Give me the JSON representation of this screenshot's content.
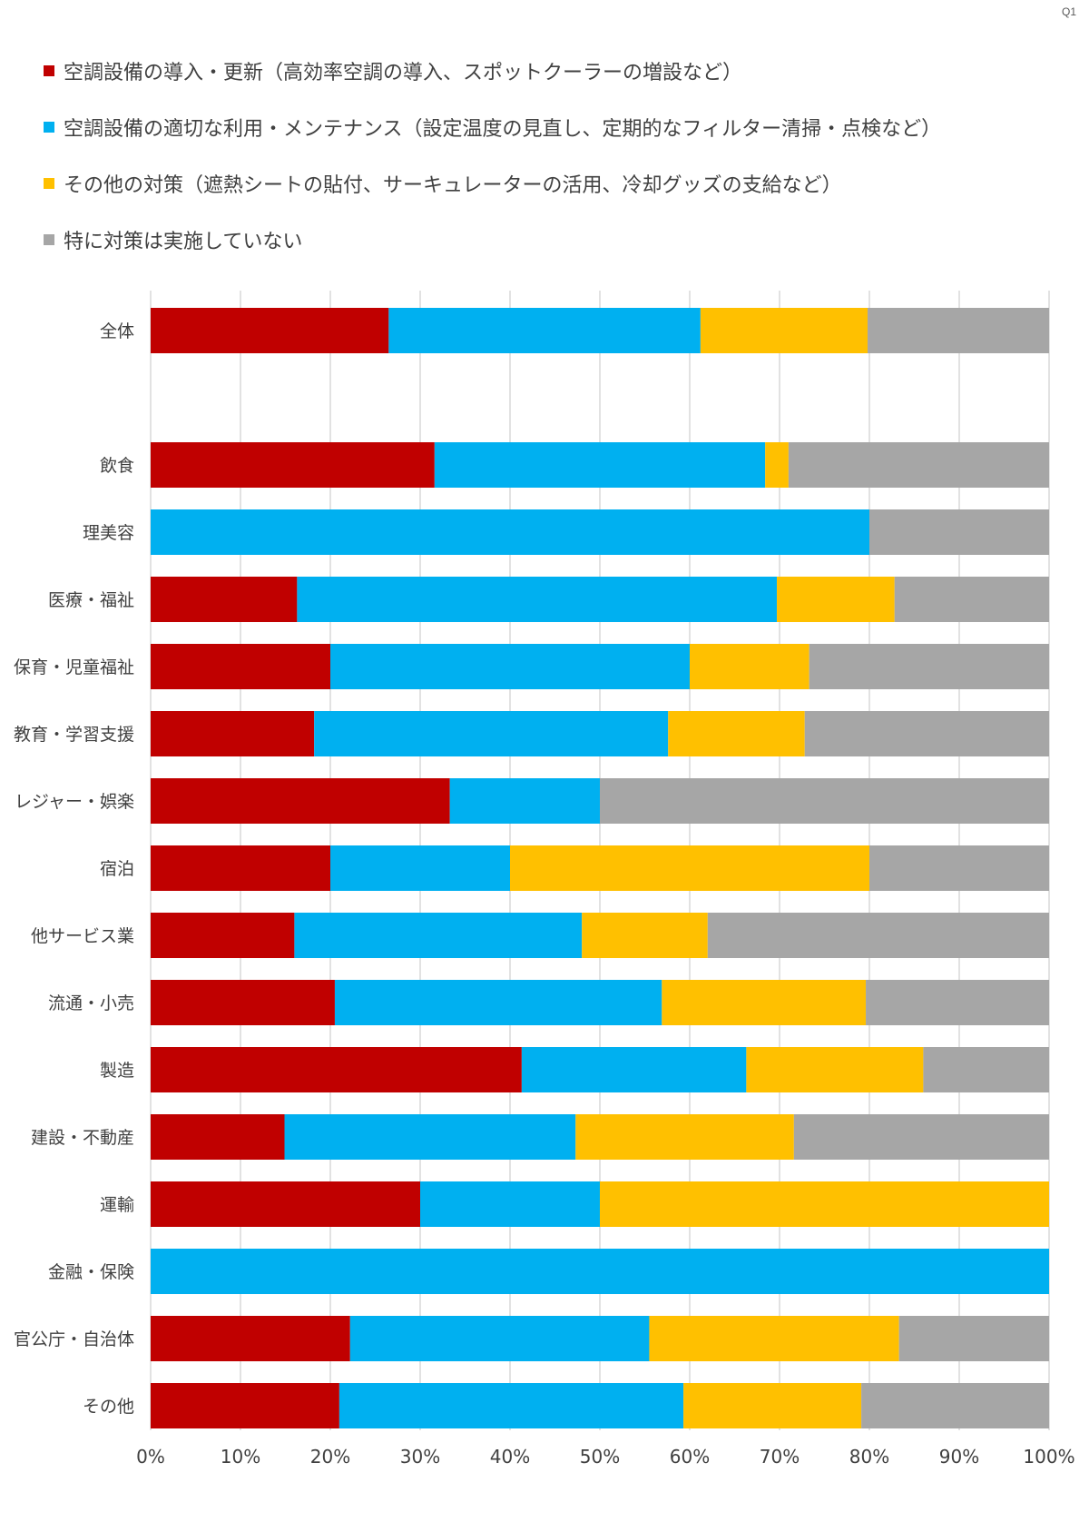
{
  "page_tag": "Q1",
  "colors": {
    "series": [
      "#C00000",
      "#00B0F0",
      "#FFC000",
      "#A6A6A6"
    ],
    "grid": "#D9D9D9"
  },
  "legend": [
    {
      "label": "空調設備の導入・更新（高効率空調の導入、スポットクーラーの増設など）"
    },
    {
      "label": "空調設備の適切な利用・メンテナンス（設定温度の見直し、定期的なフィルター清掃・点検など）"
    },
    {
      "label": "その他の対策（遮熱シートの貼付、サーキュレーターの活用、冷却グッズの支給など）"
    },
    {
      "label": "特に対策は実施していない"
    }
  ],
  "chart_data": {
    "type": "bar",
    "orientation": "horizontal",
    "stacked": "100%",
    "categories": [
      "全体",
      "",
      "飲食",
      "理美容",
      "医療・福祉",
      "保育・児童福祉",
      "教育・学習支援",
      "レジャー・娯楽",
      "宿泊",
      "他サービス業",
      "流通・小売",
      "製造",
      "建設・不動産",
      "運輸",
      "金融・保険",
      "官公庁・自治体",
      "その他"
    ],
    "series": [
      {
        "name": "空調設備の導入・更新（高効率空調の導入、スポットクーラーの増設など）",
        "values": [
          26.5,
          null,
          31.6,
          0,
          16.3,
          20.0,
          18.2,
          33.3,
          20.0,
          16.0,
          20.5,
          41.3,
          14.9,
          30.0,
          0,
          22.2,
          21.0
        ]
      },
      {
        "name": "空調設備の適切な利用・メンテナンス（設定温度の見直し、定期的なフィルター清掃・点検など）",
        "values": [
          34.7,
          null,
          36.8,
          80.0,
          53.4,
          40.0,
          39.4,
          16.7,
          20.0,
          32.0,
          36.4,
          25.0,
          32.4,
          20.0,
          100.0,
          33.3,
          38.3
        ]
      },
      {
        "name": "その他の対策（遮熱シートの貼付、サーキュレーターの活用、冷却グッズの支給など）",
        "values": [
          18.6,
          null,
          2.6,
          0,
          13.1,
          13.3,
          15.2,
          0,
          40.0,
          14.0,
          22.7,
          19.7,
          24.3,
          50.0,
          0,
          27.8,
          19.8
        ]
      },
      {
        "name": "特に対策は実施していない",
        "values": [
          20.2,
          null,
          29.0,
          20.0,
          17.2,
          26.7,
          27.2,
          50.0,
          20.0,
          38.0,
          20.4,
          14.0,
          28.4,
          0,
          0,
          16.7,
          20.9
        ]
      }
    ],
    "xlim": [
      0,
      100
    ],
    "x_ticks": [
      "0%",
      "10%",
      "20%",
      "30%",
      "40%",
      "50%",
      "60%",
      "70%",
      "80%",
      "90%",
      "100%"
    ],
    "grid": "vertical",
    "legend_position": "top"
  }
}
